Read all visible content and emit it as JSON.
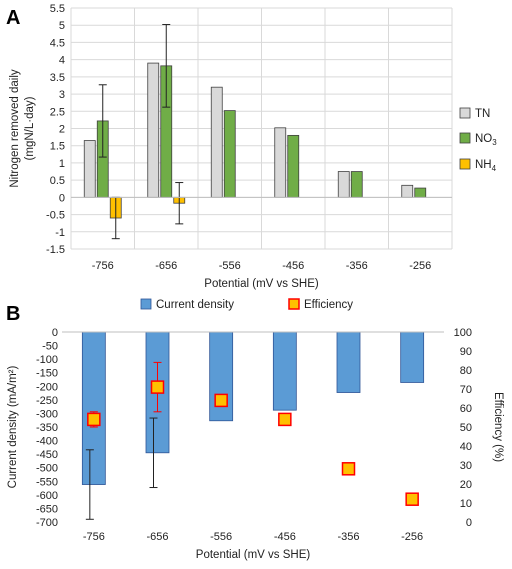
{
  "chart_data": [
    {
      "panel_label": "A",
      "type": "bar",
      "categories": [
        "-756",
        "-656",
        "-556",
        "-456",
        "-356",
        "-256"
      ],
      "xlabel": "Potential (mV vs SHE)",
      "ylabel_line1": "Nitrogen removed daily",
      "ylabel_line2": "(mgN/L·day)",
      "ylim": [
        -1.5,
        5.5
      ],
      "yticks": [
        "-1.5",
        "-1",
        "-0.5",
        "0",
        "0.5",
        "1",
        "1.5",
        "2",
        "2.5",
        "3",
        "3.5",
        "4",
        "4.5",
        "5",
        "5.5"
      ],
      "grid": true,
      "legend_position": "right",
      "series": [
        {
          "name": "TN",
          "name_sub": "",
          "color": "#d9d9d9",
          "values": [
            1.65,
            3.9,
            3.2,
            2.02,
            0.75,
            0.35
          ],
          "error": [
            null,
            null,
            null,
            null,
            null,
            null
          ]
        },
        {
          "name": "NO",
          "name_sub": "3",
          "color": "#70ad47",
          "values": [
            2.22,
            3.82,
            2.52,
            1.8,
            0.75,
            0.27
          ],
          "error": [
            1.05,
            1.2,
            null,
            null,
            null,
            null
          ]
        },
        {
          "name": "NH",
          "name_sub": "4",
          "color": "#ffc000",
          "values": [
            -0.6,
            -0.17,
            null,
            null,
            null,
            null
          ],
          "error": [
            0.6,
            0.6,
            null,
            null,
            null,
            null
          ]
        }
      ]
    },
    {
      "panel_label": "B",
      "type": "bar",
      "categories": [
        "-756",
        "-656",
        "-556",
        "-456",
        "-356",
        "-256"
      ],
      "xlabel": "Potential (mV vs SHE)",
      "ylabel_left": "Current density (mA/m²)",
      "ylabel_right": "Efficiency (%)",
      "ylim_left": [
        -700,
        0
      ],
      "yticks_left": [
        "0",
        "-50",
        "-100",
        "-150",
        "-200",
        "-250",
        "-300",
        "-350",
        "-400",
        "-450",
        "-500",
        "-550",
        "-600",
        "-650",
        "-700"
      ],
      "ylim_right": [
        0,
        100
      ],
      "yticks_right": [
        "0",
        "10",
        "20",
        "30",
        "40",
        "50",
        "60",
        "70",
        "80",
        "90",
        "100"
      ],
      "grid": false,
      "legend_position": "top",
      "series": [
        {
          "name": "Current density",
          "axis": "left",
          "kind": "bar",
          "color": "#5b9bd5",
          "values": [
            -562,
            -445,
            -327,
            -288,
            -223,
            -186
          ],
          "error": [
            128,
            128,
            null,
            null,
            null,
            null
          ]
        },
        {
          "name": "Efficiency",
          "axis": "right",
          "kind": "square",
          "color": "#ffc000",
          "edge": "#ff0000",
          "values": [
            54,
            71,
            64,
            54,
            28,
            12
          ],
          "error": [
            4,
            13,
            null,
            null,
            null,
            null
          ]
        }
      ]
    }
  ]
}
